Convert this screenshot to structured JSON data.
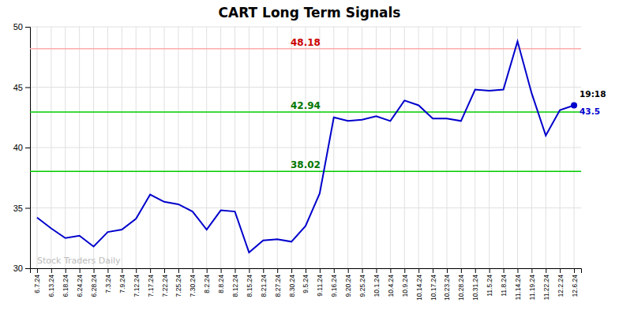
{
  "chart_data": {
    "type": "line",
    "title": "CART Long Term Signals",
    "color": "#0000cc",
    "categories": [
      "6.7.24",
      "6.13.24",
      "6.18.24",
      "6.24.24",
      "6.28.24",
      "7.3.24",
      "7.9.24",
      "7.12.24",
      "7.17.24",
      "7.22.24",
      "7.25.24",
      "7.30.24",
      "8.2.24",
      "8.8.24",
      "8.12.24",
      "8.15.24",
      "8.21.24",
      "8.27.24",
      "8.30.24",
      "9.5.24",
      "9.11.24",
      "9.16.24",
      "9.20.24",
      "9.25.24",
      "10.1.24",
      "10.4.24",
      "10.9.24",
      "10.14.24",
      "10.17.24",
      "10.23.24",
      "10.28.24",
      "10.31.24",
      "11.5.24",
      "11.8.24",
      "11.14.24",
      "11.19.24",
      "11.22.24",
      "12.2.24",
      "12.6.24"
    ],
    "values": [
      34.2,
      33.3,
      32.5,
      32.7,
      31.8,
      33.0,
      33.2,
      34.1,
      36.1,
      35.5,
      35.3,
      34.7,
      33.2,
      34.8,
      34.7,
      31.3,
      32.3,
      32.4,
      32.2,
      33.5,
      36.2,
      42.5,
      42.2,
      42.3,
      42.6,
      42.2,
      43.9,
      43.5,
      42.4,
      42.4,
      42.2,
      44.8,
      44.7,
      44.8,
      48.8,
      44.5,
      41.0,
      43.1,
      43.5
    ],
    "ylim": [
      30,
      50
    ],
    "yticks": [
      30,
      35,
      40,
      45,
      50
    ],
    "grid": true,
    "reference_lines": [
      {
        "value": 48.18,
        "color": "#ffaaaa",
        "label": "48.18",
        "label_color": "#cc0000"
      },
      {
        "value": 42.94,
        "color": "#00cc00",
        "label": "42.94",
        "label_color": "#007700"
      },
      {
        "value": 38.02,
        "color": "#00cc00",
        "label": "38.02",
        "label_color": "#007700"
      }
    ],
    "annotations": [
      "19:18",
      "Stock Traders Daily"
    ]
  }
}
